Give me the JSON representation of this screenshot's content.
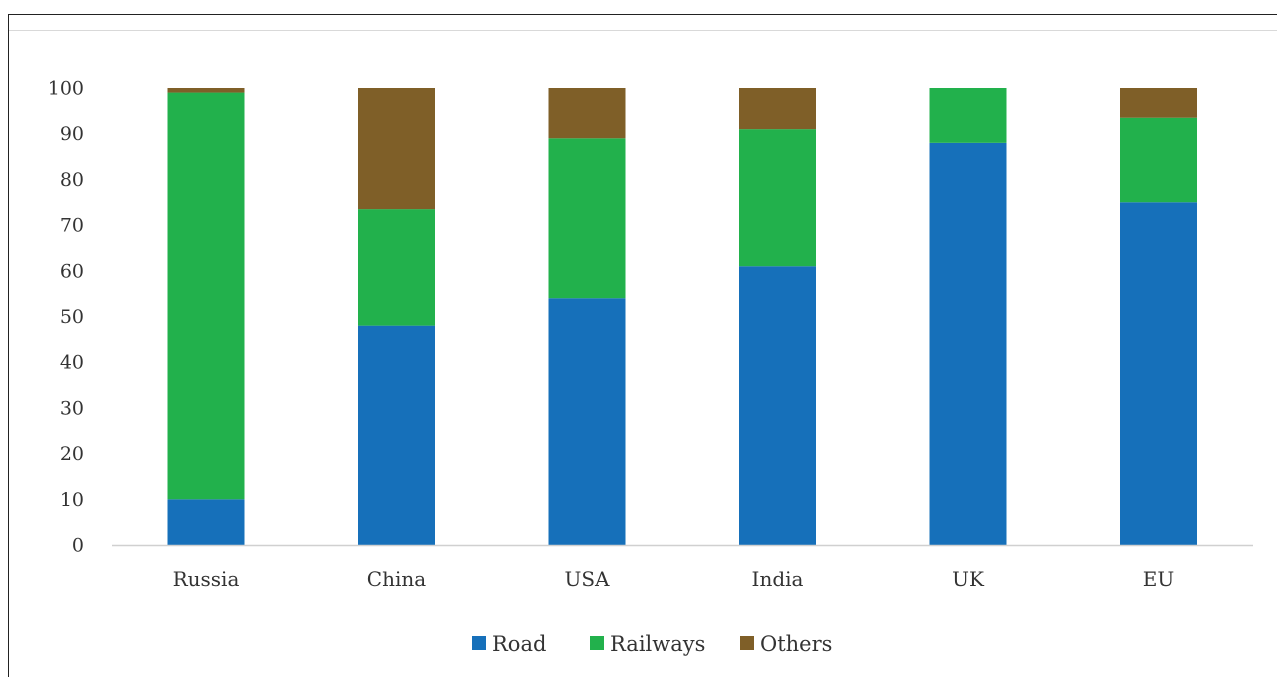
{
  "chart_data": {
    "type": "bar",
    "stacked": true,
    "title": "",
    "xlabel": "",
    "ylabel": "",
    "ylim": [
      0,
      100
    ],
    "yticks": [
      0,
      10,
      20,
      30,
      40,
      50,
      60,
      70,
      80,
      90,
      100
    ],
    "grid": false,
    "legend_position": "bottom",
    "categories": [
      "Russia",
      "China",
      "USA",
      "India",
      "UK",
      "EU"
    ],
    "series": [
      {
        "name": "Road",
        "color": "#1670ba",
        "values": [
          10,
          48,
          54,
          61,
          88,
          75
        ]
      },
      {
        "name": "Railways",
        "color": "#22b14c",
        "values": [
          89,
          25.5,
          35,
          30,
          12,
          18.5
        ]
      },
      {
        "name": "Others",
        "color": "#7f5f28",
        "values": [
          1,
          26.5,
          11,
          9,
          0,
          6.5
        ]
      }
    ]
  }
}
